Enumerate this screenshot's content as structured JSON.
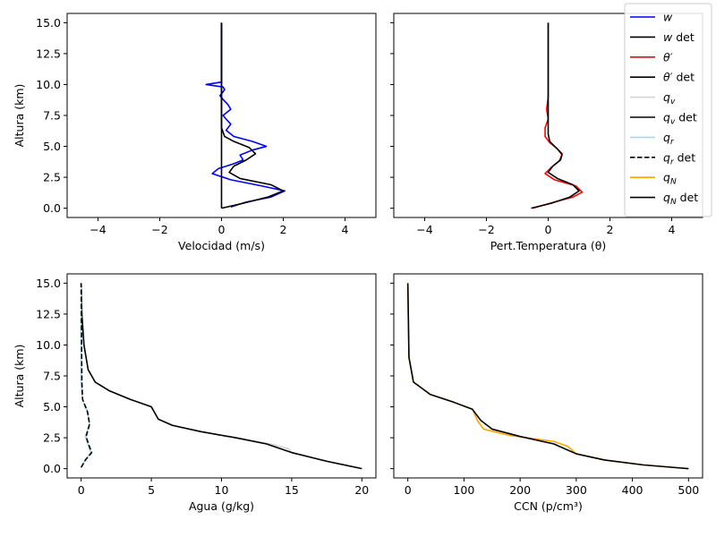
{
  "legend": {
    "placement": "top-right",
    "entries": [
      {
        "key": "w",
        "label": "w",
        "italic": true,
        "suffix": "",
        "color": "#0000ff",
        "dash": "solid"
      },
      {
        "key": "w_det",
        "label": "w",
        "italic": true,
        "suffix": " det",
        "color": "#000000",
        "dash": "solid"
      },
      {
        "key": "theta",
        "label": "θ′",
        "italic": true,
        "suffix": "",
        "color": "#ff0000",
        "dash": "solid"
      },
      {
        "key": "theta_det",
        "label": "θ′",
        "italic": true,
        "suffix": " det",
        "color": "#000000",
        "dash": "solid"
      },
      {
        "key": "qv",
        "label": "qv",
        "italic": true,
        "suffix": "",
        "color": "#d3d3d3",
        "dash": "solid"
      },
      {
        "key": "qv_det",
        "label": "qv",
        "italic": true,
        "suffix": " det",
        "color": "#000000",
        "dash": "solid"
      },
      {
        "key": "qr",
        "label": "qr",
        "italic": true,
        "suffix": "",
        "color": "#add8e6",
        "dash": "solid"
      },
      {
        "key": "qr_det",
        "label": "qr",
        "italic": true,
        "suffix": " det",
        "color": "#000000",
        "dash": "dashed"
      },
      {
        "key": "qN",
        "label": "qN",
        "italic": true,
        "suffix": "",
        "color": "#ffa500",
        "dash": "solid"
      },
      {
        "key": "qN_det",
        "label": "qN",
        "italic": true,
        "suffix": " det",
        "color": "#000000",
        "dash": "solid"
      }
    ]
  },
  "chart_data": [
    {
      "type": "line",
      "xlabel": "Velocidad (m/s)",
      "ylabel": "Altura (km)",
      "xlim": [
        -5,
        5
      ],
      "ylim": [
        -0.75,
        15.75
      ],
      "xticks": [
        -4,
        -2,
        0,
        2,
        4
      ],
      "yticks": [
        0.0,
        2.5,
        5.0,
        7.5,
        10.0,
        12.5,
        15.0
      ],
      "grid": false,
      "series": [
        {
          "name": "w",
          "color": "#0000ff",
          "dash": "solid",
          "x": [
            0.3,
            0.8,
            1.6,
            2.05,
            1.3,
            0.3,
            -0.3,
            -0.1,
            0.4,
            0.7,
            0.6,
            1.0,
            1.45,
            1.0,
            0.4,
            0.15,
            0.3,
            0.15,
            0.05,
            0.3,
            0.2,
            0.05,
            -0.05,
            0.05,
            0.1,
            0.05,
            -0.5,
            0.0,
            0.0,
            0.0,
            0.0
          ],
          "y": [
            0.1,
            0.5,
            0.9,
            1.4,
            1.8,
            2.3,
            2.8,
            3.2,
            3.6,
            3.9,
            4.3,
            4.7,
            5.0,
            5.4,
            5.8,
            6.3,
            6.8,
            7.2,
            7.5,
            8.0,
            8.4,
            8.8,
            9.1,
            9.4,
            9.6,
            9.8,
            10.0,
            10.2,
            11.0,
            13.0,
            15.0
          ]
        },
        {
          "name": "w det",
          "color": "#000000",
          "dash": "solid",
          "x": [
            0.0,
            0.7,
            1.5,
            2.0,
            1.6,
            0.6,
            0.25,
            0.4,
            0.8,
            1.1,
            0.9,
            0.4,
            0.1,
            0.0,
            0.0,
            0.0,
            0.0
          ],
          "y": [
            0.0,
            0.4,
            0.9,
            1.4,
            1.9,
            2.4,
            2.9,
            3.4,
            3.9,
            4.4,
            4.9,
            5.4,
            5.8,
            6.5,
            8.0,
            11.0,
            15.0
          ]
        },
        {
          "name": "",
          "color": "#000000",
          "dash": "solid",
          "x": [
            0.0,
            0.0
          ],
          "y": [
            0.0,
            15.0
          ]
        }
      ]
    },
    {
      "type": "line",
      "xlabel": "Pert.Temperatura (θ)",
      "ylabel": "",
      "xlim": [
        -5,
        5
      ],
      "ylim": [
        -0.75,
        15.75
      ],
      "xticks": [
        -4,
        -2,
        0,
        2,
        4
      ],
      "yticks": [
        0.0,
        2.5,
        5.0,
        7.5,
        10.0,
        12.5,
        15.0
      ],
      "grid": false,
      "series": [
        {
          "name": "θ′",
          "color": "#ff0000",
          "dash": "solid",
          "x": [
            -0.5,
            0.2,
            0.8,
            1.1,
            0.9,
            0.2,
            -0.1,
            0.1,
            0.35,
            0.45,
            0.3,
            0.05,
            -0.1,
            -0.1,
            0.0,
            -0.05,
            0.0,
            0.0,
            0.0
          ],
          "y": [
            0.0,
            0.5,
            0.9,
            1.3,
            1.8,
            2.3,
            2.8,
            3.3,
            3.8,
            4.3,
            4.8,
            5.3,
            5.8,
            6.5,
            7.2,
            8.0,
            9.0,
            11.0,
            15.0
          ]
        },
        {
          "name": "θ′ det",
          "color": "#000000",
          "dash": "solid",
          "x": [
            -0.55,
            0.1,
            0.7,
            1.0,
            0.8,
            0.3,
            0.0,
            0.15,
            0.4,
            0.45,
            0.25,
            0.05,
            0.0,
            0.0,
            0.0
          ],
          "y": [
            0.0,
            0.4,
            0.9,
            1.4,
            1.9,
            2.4,
            2.9,
            3.4,
            3.9,
            4.4,
            4.9,
            5.4,
            6.0,
            8.0,
            15.0
          ]
        }
      ]
    },
    {
      "type": "line",
      "xlabel": "Agua (g/kg)",
      "ylabel": "Altura (km)",
      "xlim": [
        -1,
        21
      ],
      "ylim": [
        -0.75,
        15.75
      ],
      "xticks": [
        0,
        5,
        10,
        15,
        20
      ],
      "yticks": [
        0.0,
        2.5,
        5.0,
        7.5,
        10.0,
        12.5,
        15.0
      ],
      "grid": false,
      "series": [
        {
          "name": "qv",
          "color": "#d3d3d3",
          "dash": "solid",
          "x": [
            20.0,
            17.5,
            15.0,
            14.8,
            13.5,
            11.0,
            8.5,
            6.5,
            5.5,
            5.0,
            3.5,
            2.0,
            1.0,
            0.5,
            0.2,
            0.05,
            0.0
          ],
          "y": [
            0.0,
            0.6,
            1.3,
            1.6,
            2.0,
            2.5,
            3.0,
            3.5,
            4.0,
            5.0,
            5.6,
            6.3,
            7.0,
            8.0,
            10.0,
            12.5,
            15.0
          ]
        },
        {
          "name": "qv det",
          "color": "#000000",
          "dash": "solid",
          "x": [
            20.0,
            17.5,
            15.0,
            13.2,
            11.0,
            8.5,
            6.5,
            5.5,
            5.0,
            3.5,
            2.0,
            1.0,
            0.5,
            0.2,
            0.05,
            0.0
          ],
          "y": [
            0.0,
            0.6,
            1.3,
            2.0,
            2.5,
            3.0,
            3.5,
            4.0,
            5.0,
            5.6,
            6.3,
            7.0,
            8.0,
            10.0,
            12.5,
            15.0
          ]
        },
        {
          "name": "qr",
          "color": "#add8e6",
          "dash": "solid",
          "x": [
            0.0,
            0.3,
            0.7,
            0.5,
            0.3,
            0.6,
            0.45,
            0.1,
            0.0,
            0.0
          ],
          "y": [
            0.1,
            0.7,
            1.3,
            1.9,
            2.6,
            3.6,
            4.6,
            5.6,
            7.0,
            15.0
          ]
        },
        {
          "name": "qr det",
          "color": "#000000",
          "dash": "dashed",
          "x": [
            0.0,
            0.3,
            0.75,
            0.55,
            0.35,
            0.6,
            0.45,
            0.1,
            0.05,
            0.0
          ],
          "y": [
            0.1,
            0.7,
            1.3,
            1.9,
            2.6,
            3.6,
            4.6,
            5.6,
            7.0,
            15.0
          ]
        }
      ]
    },
    {
      "type": "line",
      "xlabel": "CCN (p/cm³)",
      "ylabel": "",
      "xlim": [
        -25,
        525
      ],
      "ylim": [
        -0.75,
        15.75
      ],
      "xticks": [
        0,
        100,
        200,
        300,
        400,
        500
      ],
      "yticks": [
        0.0,
        2.5,
        5.0,
        7.5,
        10.0,
        12.5,
        15.0
      ],
      "grid": false,
      "series": [
        {
          "name": "qN",
          "color": "#ffa500",
          "dash": "solid",
          "x": [
            500,
            420,
            350,
            300,
            285,
            260,
            180,
            135,
            125,
            115,
            80,
            40,
            10,
            2,
            0
          ],
          "y": [
            0.0,
            0.3,
            0.7,
            1.2,
            1.8,
            2.2,
            2.7,
            3.2,
            3.8,
            4.8,
            5.4,
            6.0,
            7.0,
            9.0,
            15.0
          ]
        },
        {
          "name": "qN det",
          "color": "#000000",
          "dash": "solid",
          "x": [
            500,
            420,
            350,
            300,
            260,
            200,
            150,
            130,
            115,
            80,
            40,
            10,
            2,
            0
          ],
          "y": [
            0.0,
            0.3,
            0.7,
            1.2,
            2.0,
            2.6,
            3.2,
            3.9,
            4.8,
            5.4,
            6.0,
            7.0,
            9.0,
            15.0
          ]
        }
      ]
    }
  ]
}
